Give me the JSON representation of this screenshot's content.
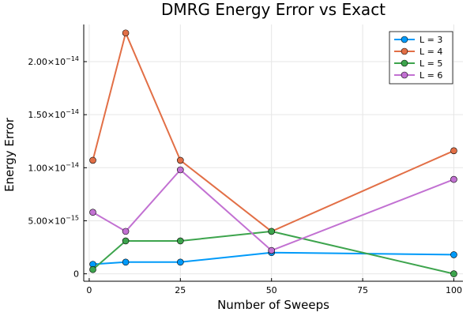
{
  "chart_data": {
    "type": "line",
    "title": "DMRG Energy Error vs Exact",
    "xlabel": "Number of Sweeps",
    "ylabel": "Energy Error",
    "xlim": [
      -1.5,
      102.5
    ],
    "ylim": [
      -7e-16,
      2.35e-14
    ],
    "x_ticks": [
      0,
      25,
      50,
      75,
      100
    ],
    "x_tick_labels": [
      "0",
      "25",
      "50",
      "75",
      "100"
    ],
    "y_ticks": [
      0,
      5e-15,
      1e-14,
      1.5e-14,
      2e-14
    ],
    "y_tick_labels": [
      {
        "mantissa": "0",
        "exponent": ""
      },
      {
        "mantissa": "5.00×10",
        "exponent": "−15"
      },
      {
        "mantissa": "1.00×10",
        "exponent": "−14"
      },
      {
        "mantissa": "1.50×10",
        "exponent": "−14"
      },
      {
        "mantissa": "2.00×10",
        "exponent": "−14"
      }
    ],
    "grid": true,
    "legend_position": "top-right",
    "x": [
      1,
      10,
      25,
      50,
      100
    ],
    "series": [
      {
        "name": "L = 3",
        "color": "#009af9",
        "values": [
          9e-16,
          1.1e-15,
          1.1e-15,
          2e-15,
          1.8e-15
        ]
      },
      {
        "name": "L = 4",
        "color": "#e26f46",
        "values": [
          1.07e-14,
          2.27e-14,
          1.07e-14,
          4e-15,
          1.16e-14
        ]
      },
      {
        "name": "L = 5",
        "color": "#3da44d",
        "values": [
          4e-16,
          3.1e-15,
          3.1e-15,
          4e-15,
          0
        ]
      },
      {
        "name": "L = 6",
        "color": "#c271d2",
        "values": [
          5.8e-15,
          4e-15,
          9.8e-15,
          2.2e-15,
          8.9e-15
        ]
      }
    ]
  }
}
